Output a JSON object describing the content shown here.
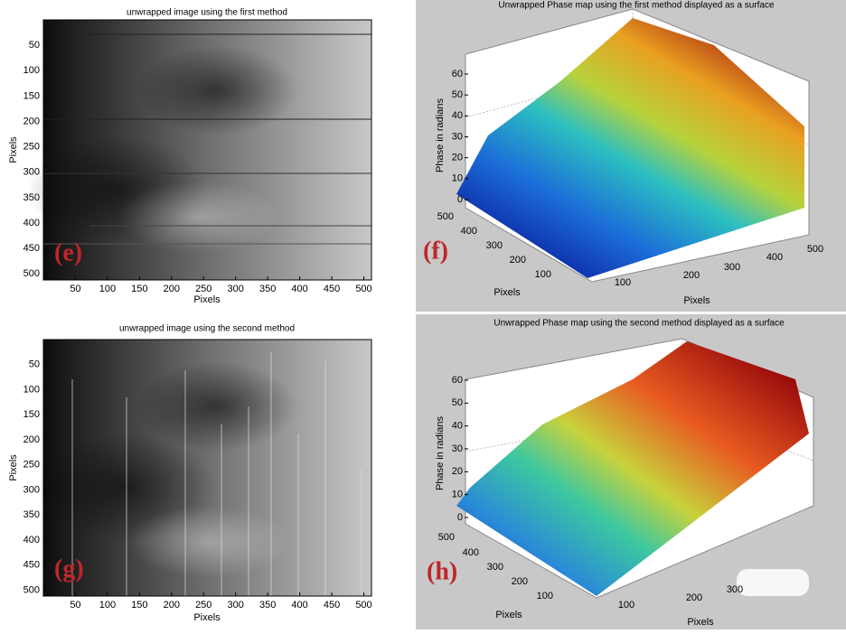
{
  "panels": [
    {
      "label": "(e)",
      "title": "unwrapped image using the first method",
      "xlabel": "Pixels",
      "ylabel": "Pixels",
      "xticks": [
        50,
        100,
        150,
        200,
        250,
        300,
        350,
        400,
        450,
        500
      ],
      "yticks": [
        50,
        100,
        150,
        200,
        250,
        300,
        350,
        400,
        450,
        500
      ]
    },
    {
      "label": "(f)",
      "title": "Unwrapped Phase map using the first method displayed as a surface",
      "zlabel": "Phase in radians",
      "zticks": [
        0,
        10,
        20,
        30,
        40,
        50,
        60
      ],
      "yticks": [
        500,
        400,
        300,
        200,
        100
      ],
      "xticks": [
        100,
        200,
        300,
        400,
        500
      ],
      "ylabel": "Pixels",
      "xlabel": "Pixels"
    },
    {
      "label": "(g)",
      "title": "unwrapped image using the second method",
      "xlabel": "Pixels",
      "ylabel": "Pixels",
      "xticks": [
        50,
        100,
        150,
        200,
        250,
        300,
        350,
        400,
        450,
        500
      ],
      "yticks": [
        50,
        100,
        150,
        200,
        250,
        300,
        350,
        400,
        450,
        500
      ]
    },
    {
      "label": "(h)",
      "title": "Unwrapped Phase map using the second method displayed as a surface",
      "zlabel": "Phase in radians",
      "zticks": [
        0,
        10,
        20,
        30,
        40,
        50,
        60
      ],
      "yticks": [
        500,
        400,
        300,
        200,
        100
      ],
      "xticks": [
        100,
        200,
        300
      ],
      "ylabel": "Pixels",
      "xlabel": "Pixels"
    }
  ]
}
